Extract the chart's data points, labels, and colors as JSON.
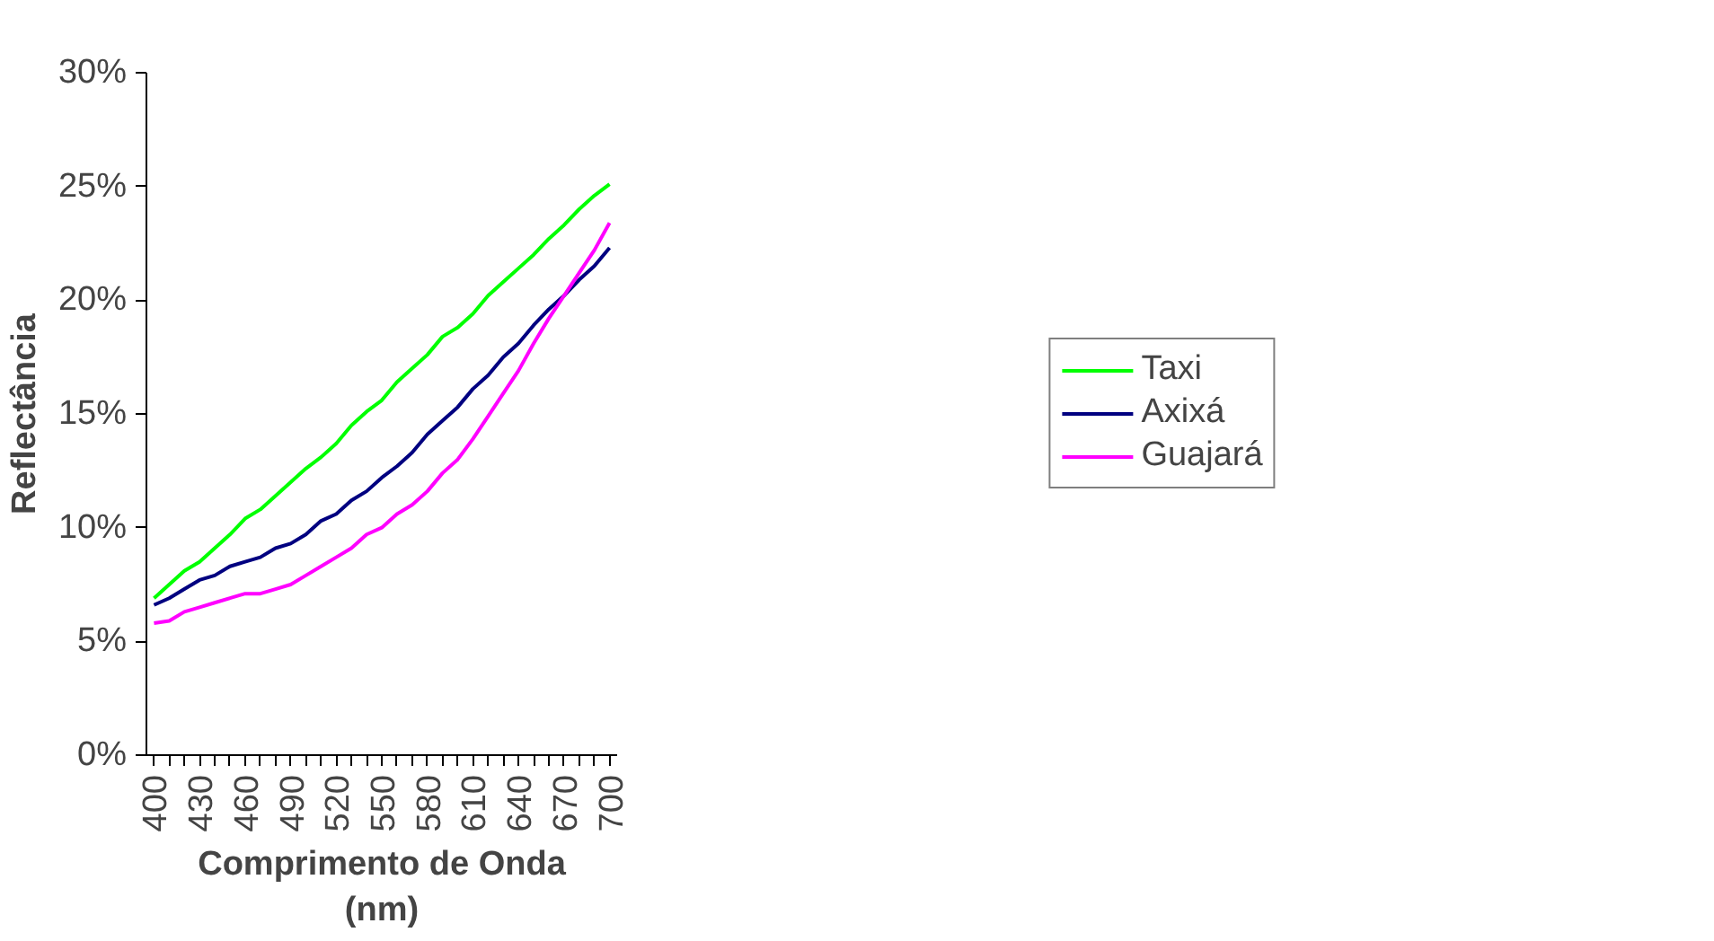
{
  "chart_data": {
    "type": "line",
    "xlabel": "Comprimento de Onda\n(nm)",
    "ylabel": "Reflectância",
    "x": [
      400,
      410,
      420,
      430,
      440,
      450,
      460,
      470,
      480,
      490,
      500,
      510,
      520,
      530,
      540,
      550,
      560,
      570,
      580,
      590,
      600,
      610,
      620,
      630,
      640,
      650,
      660,
      670,
      680,
      690,
      700
    ],
    "series": [
      {
        "name": "Taxi",
        "color": "#00ff00",
        "values": [
          6.9,
          7.5,
          8.1,
          8.5,
          9.1,
          9.7,
          10.4,
          10.8,
          11.4,
          12.0,
          12.6,
          13.1,
          13.7,
          14.5,
          15.1,
          15.6,
          16.4,
          17.0,
          17.6,
          18.4,
          18.8,
          19.4,
          20.2,
          20.8,
          21.4,
          22.0,
          22.7,
          23.3,
          24.0,
          24.6,
          25.1
        ]
      },
      {
        "name": "Axixá",
        "color": "#000080",
        "values": [
          6.6,
          6.9,
          7.3,
          7.7,
          7.9,
          8.3,
          8.5,
          8.7,
          9.1,
          9.3,
          9.7,
          10.3,
          10.6,
          11.2,
          11.6,
          12.2,
          12.7,
          13.3,
          14.1,
          14.7,
          15.3,
          16.1,
          16.7,
          17.5,
          18.1,
          18.9,
          19.6,
          20.2,
          20.9,
          21.5,
          22.3
        ]
      },
      {
        "name": "Guajará",
        "color": "#ff00ff",
        "values": [
          5.8,
          5.9,
          6.3,
          6.5,
          6.7,
          6.9,
          7.1,
          7.1,
          7.3,
          7.5,
          7.9,
          8.3,
          8.7,
          9.1,
          9.7,
          10.0,
          10.6,
          11.0,
          11.6,
          12.4,
          13.0,
          13.9,
          14.9,
          15.9,
          16.9,
          18.1,
          19.2,
          20.2,
          21.2,
          22.2,
          23.4
        ]
      }
    ],
    "xlim": [
      395,
      705
    ],
    "xticks": [
      {
        "value": 400,
        "label": "400"
      },
      {
        "value": 410,
        "label": null
      },
      {
        "value": 420,
        "label": null
      },
      {
        "value": 430,
        "label": "430"
      },
      {
        "value": 440,
        "label": null
      },
      {
        "value": 450,
        "label": null
      },
      {
        "value": 460,
        "label": "460"
      },
      {
        "value": 470,
        "label": null
      },
      {
        "value": 480,
        "label": null
      },
      {
        "value": 490,
        "label": "490"
      },
      {
        "value": 500,
        "label": null
      },
      {
        "value": 510,
        "label": null
      },
      {
        "value": 520,
        "label": "520"
      },
      {
        "value": 530,
        "label": null
      },
      {
        "value": 540,
        "label": null
      },
      {
        "value": 550,
        "label": "550"
      },
      {
        "value": 560,
        "label": null
      },
      {
        "value": 570,
        "label": null
      },
      {
        "value": 580,
        "label": "580"
      },
      {
        "value": 590,
        "label": null
      },
      {
        "value": 600,
        "label": null
      },
      {
        "value": 610,
        "label": "610"
      },
      {
        "value": 620,
        "label": null
      },
      {
        "value": 630,
        "label": null
      },
      {
        "value": 640,
        "label": "640"
      },
      {
        "value": 650,
        "label": null
      },
      {
        "value": 660,
        "label": null
      },
      {
        "value": 670,
        "label": "670"
      },
      {
        "value": 680,
        "label": null
      },
      {
        "value": 690,
        "label": null
      },
      {
        "value": 700,
        "label": "700"
      }
    ],
    "ylim": [
      0,
      30
    ],
    "yticks": [
      {
        "value": 0,
        "label": "0%"
      },
      {
        "value": 5,
        "label": "5%"
      },
      {
        "value": 10,
        "label": "10%"
      },
      {
        "value": 15,
        "label": "15%"
      },
      {
        "value": 20,
        "label": "20%"
      },
      {
        "value": 25,
        "label": "25%"
      },
      {
        "value": 30,
        "label": "30%"
      }
    ],
    "grid": false,
    "legend": "right",
    "marker": "none",
    "line_style": "solid"
  }
}
